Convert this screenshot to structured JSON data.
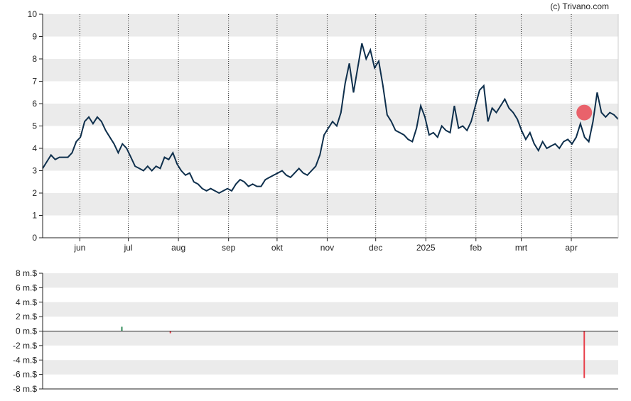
{
  "copyright": "(c) Trivano.com",
  "chart_data": [
    {
      "type": "line",
      "title": "",
      "ylim": [
        0,
        10
      ],
      "y_ticks": [
        "0",
        "1",
        "2",
        "3",
        "4",
        "5",
        "6",
        "7",
        "8",
        "9",
        "10"
      ],
      "x_ticks": [
        "jun",
        "jul",
        "aug",
        "sep",
        "okt",
        "nov",
        "dec",
        "2025",
        "feb",
        "mrt",
        "apr"
      ],
      "grid": "horizontal bands + dotted vertical month lines",
      "line_color": "#0e2f4c",
      "highlight_color": "#e8404b",
      "series": [
        {
          "values": [
            3.1,
            3.4,
            3.7,
            3.5,
            3.6,
            3.6,
            3.6,
            3.8,
            4.3,
            4.5,
            5.2,
            5.4,
            5.1,
            5.4,
            5.2,
            4.8,
            4.5,
            4.2,
            3.8,
            4.2,
            4.0,
            3.6,
            3.2,
            3.1,
            3.0,
            3.2,
            3.0,
            3.2,
            3.1,
            3.6,
            3.5,
            3.8,
            3.3,
            3.0,
            2.8,
            2.9,
            2.5,
            2.4,
            2.2,
            2.1,
            2.2,
            2.1,
            2.0,
            2.1,
            2.2,
            2.1,
            2.4,
            2.6,
            2.5,
            2.3,
            2.4,
            2.3,
            2.3,
            2.6,
            2.7,
            2.8,
            2.9,
            3.0,
            2.8,
            2.7,
            2.9,
            3.1,
            2.9,
            2.8,
            3.0,
            3.2,
            3.7,
            4.6,
            4.9,
            5.2,
            5.0,
            5.6,
            6.9,
            7.8,
            6.5,
            7.6,
            8.7,
            8.0,
            8.4,
            7.6,
            7.9,
            6.8,
            5.5,
            5.2,
            4.8,
            4.7,
            4.6,
            4.4,
            4.3,
            4.9,
            5.9,
            5.4,
            4.6,
            4.7,
            4.5,
            5.0,
            4.8,
            4.7,
            5.9,
            4.9,
            5.0,
            4.8,
            5.2,
            5.9,
            6.6,
            6.8,
            5.2,
            5.8,
            5.6,
            5.9,
            6.2,
            5.8,
            5.6,
            5.3,
            4.8,
            4.4,
            4.7,
            4.2,
            3.9,
            4.3,
            4.0,
            4.1,
            4.2,
            4.0,
            4.3,
            4.4,
            4.2,
            4.5,
            5.1,
            4.5,
            4.3,
            5.2,
            6.5,
            5.6,
            5.4,
            5.6,
            5.5,
            5.3
          ],
          "x_start": "2024-05-09",
          "x_end": "2025-04-30"
        }
      ],
      "highlight_point": {
        "x": "2025-04-09",
        "y": 5.6
      }
    },
    {
      "type": "bar",
      "title": "",
      "ylim": [
        -8,
        8
      ],
      "y_ticks": [
        "8 m.$",
        "6 m.$",
        "4 m.$",
        "2 m.$",
        "0 m.$",
        "-2 m.$",
        "-4 m.$",
        "-6 m.$",
        "-8 m.$"
      ],
      "unit": "m.$",
      "series": [
        {
          "points": [
            {
              "x": "2024-06-27",
              "value": 0.6,
              "color": "#2e8b57"
            },
            {
              "x": "2024-07-27",
              "value": -0.3,
              "color": "#e8404b"
            },
            {
              "x": "2025-04-09",
              "value": -6.5,
              "color": "#e8404b"
            }
          ]
        }
      ]
    }
  ]
}
